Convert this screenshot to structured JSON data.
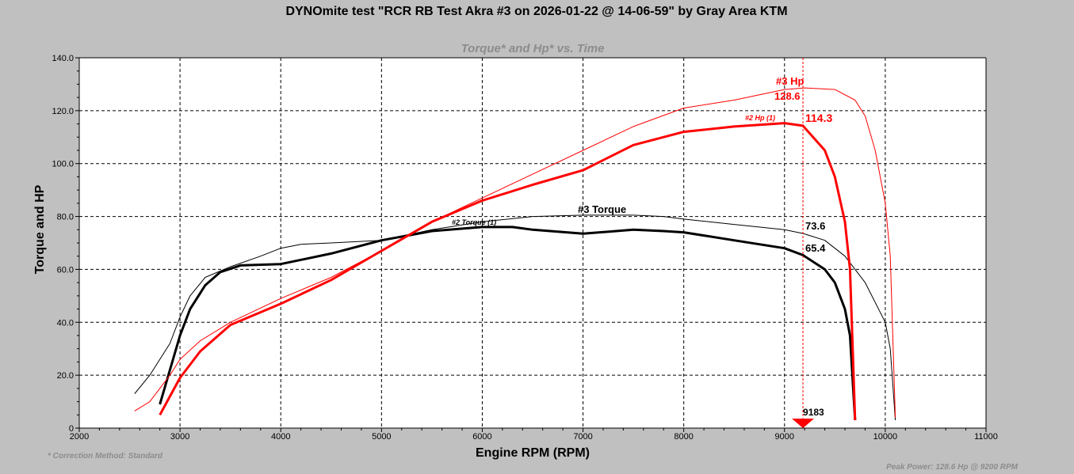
{
  "chart_data": {
    "type": "line",
    "title": "DYNOmite test \"RCR RB Test Akra #3 on 2026-01-22 @ 14-06-59\" by Gray Area KTM",
    "subtitle": "Torque* and Hp* vs. Time",
    "xlabel": "Engine RPM (RPM)",
    "ylabel": "Torque and HP",
    "xlim": [
      2000,
      11000
    ],
    "ylim": [
      0,
      140
    ],
    "xticks": [
      "2000",
      "3000",
      "4000",
      "5000",
      "6000",
      "7000",
      "8000",
      "9000",
      "10000",
      "11000"
    ],
    "yticks": [
      "0",
      "20.0",
      "40.0",
      "60.0",
      "80.0",
      "100.0",
      "120.0",
      "140.0"
    ],
    "grid": true,
    "cursor": {
      "rpm": 9183,
      "label": "9183",
      "color": "#ff0000"
    },
    "series": [
      {
        "name": "#3 Torque",
        "label": "#3 Torque",
        "peak_label": "73.6",
        "color": "#000000",
        "weight": "thin",
        "x": [
          2550,
          2700,
          2900,
          3000,
          3100,
          3250,
          3500,
          3800,
          4000,
          4200,
          4500,
          5000,
          5500,
          6000,
          6500,
          7000,
          7500,
          7800,
          8000,
          8500,
          9000,
          9183,
          9400,
          9600,
          9800,
          10000,
          10050,
          10100
        ],
        "y": [
          13,
          20,
          32,
          42,
          50,
          57,
          61,
          65,
          68,
          69.5,
          70,
          71,
          75,
          78,
          80,
          80.5,
          80.5,
          80,
          79,
          77,
          75,
          73.6,
          71,
          65,
          55,
          40,
          30,
          3
        ]
      },
      {
        "name": "#2 Torque (1)",
        "label": "#2 Torque (1)",
        "peak_label": "65.4",
        "color": "#000000",
        "weight": "thick",
        "x": [
          2800,
          2900,
          3000,
          3100,
          3250,
          3400,
          3600,
          4000,
          4500,
          5000,
          5500,
          6000,
          6300,
          6500,
          7000,
          7500,
          7800,
          8000,
          8500,
          9000,
          9183,
          9400,
          9500,
          9600,
          9650,
          9700
        ],
        "y": [
          9,
          22,
          35,
          45,
          54,
          59,
          61.5,
          62,
          66,
          71,
          74.5,
          76,
          76,
          75,
          73.5,
          75,
          74.5,
          74,
          71,
          68,
          65.4,
          60,
          55,
          45,
          35,
          3
        ]
      },
      {
        "name": "#3 Hp",
        "label": "#3 Hp",
        "peak_label": "128.6",
        "color": "#ff0000",
        "weight": "thin",
        "x": [
          2550,
          2700,
          2900,
          3000,
          3200,
          3500,
          4000,
          4500,
          5000,
          5500,
          6000,
          6500,
          7000,
          7500,
          8000,
          8500,
          9000,
          9200,
          9500,
          9700,
          9800,
          9900,
          10000,
          10050,
          10100
        ],
        "y": [
          6.5,
          10,
          20,
          26,
          33,
          40,
          49,
          57,
          67,
          78,
          87,
          96,
          105,
          114,
          121,
          124,
          128,
          128.6,
          128,
          124,
          118,
          105,
          85,
          65,
          4
        ]
      },
      {
        "name": "#2 Hp (1)",
        "label": "#2 Hp (1)",
        "peak_label": "114.3",
        "color": "#ff0000",
        "weight": "thick",
        "x": [
          2800,
          2900,
          3000,
          3200,
          3500,
          4000,
          4500,
          5000,
          5500,
          6000,
          6500,
          7000,
          7500,
          8000,
          8500,
          9000,
          9183,
          9400,
          9500,
          9600,
          9650,
          9700
        ],
        "y": [
          5,
          12,
          19,
          29,
          39,
          47,
          56,
          67,
          78,
          86,
          92,
          97.5,
          107,
          112,
          114,
          115.3,
          114.3,
          105,
          95,
          78,
          60,
          3
        ]
      }
    ],
    "footer_left": "* Correction Method: Standard",
    "footer_right": "Peak Power: 128.6 Hp @ 9200 RPM"
  }
}
